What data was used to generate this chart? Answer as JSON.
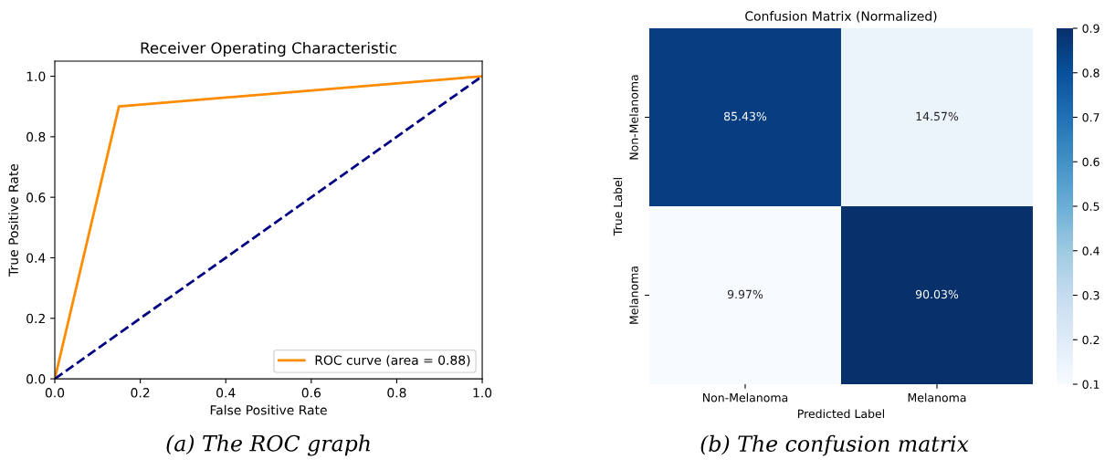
{
  "chart_data": [
    {
      "type": "line",
      "title": "Receiver Operating Characteristic",
      "xlabel": "False Positive Rate",
      "ylabel": "True Positive Rate",
      "series": [
        {
          "name": "ROC curve (area = 0.88)",
          "color": "#ff8c00",
          "x": [
            0,
            0.15,
            1
          ],
          "values": [
            0,
            0.9,
            1
          ],
          "line_style": "solid"
        },
        {
          "color": "#000080",
          "x": [
            0,
            1
          ],
          "values": [
            0,
            1
          ],
          "line_style": "dashed"
        }
      ],
      "xlim": [
        0,
        1
      ],
      "ylim": [
        0,
        1.05
      ],
      "xticks": [
        {
          "value": 0,
          "label": "0.0"
        },
        0.2,
        0.4,
        0.6,
        0.8,
        {
          "value": 1,
          "label": "1.0"
        }
      ],
      "yticks": [
        {
          "value": 0,
          "label": "0.0"
        },
        0.2,
        0.4,
        0.6,
        0.8,
        {
          "value": 1,
          "label": "1.0"
        }
      ],
      "legend": "bottom right",
      "grid": false,
      "marker": "none",
      "annotations": [
        "(a) The ROC graph"
      ]
    },
    {
      "type": "heatmap",
      "title": "Confusion Matrix (Normalized)",
      "xlabel": "Predicted Label",
      "ylabel": "True Label",
      "categories": [
        "Non-Melanoma",
        "Melanoma"
      ],
      "y_categories": [
        "Non-Melanoma",
        "Melanoma"
      ],
      "cells": [
        [
          0.8543,
          0.1457
        ],
        [
          0.0997,
          0.9003
        ]
      ],
      "cell_labels": [
        [
          "85.43%",
          "14.57%"
        ],
        [
          "9.97%",
          "90.03%"
        ]
      ],
      "clim": [
        0.1,
        0.9
      ],
      "cticks": [
        0.1,
        0.2,
        0.3,
        0.4,
        0.5,
        0.6,
        0.7,
        0.8,
        0.9
      ],
      "annotations": [
        "(b) The confusion matrix"
      ]
    }
  ]
}
